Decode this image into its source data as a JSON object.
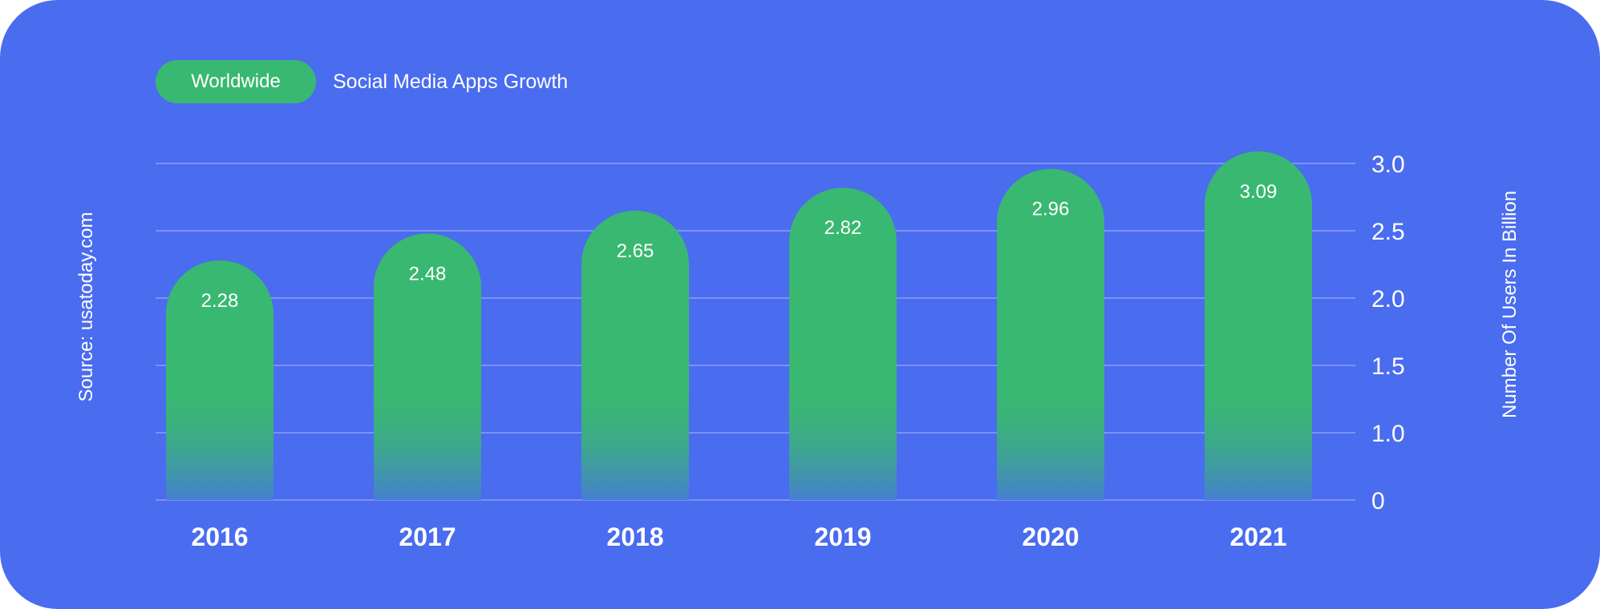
{
  "header": {
    "badge_label": "Worldwide",
    "title": "Social Media Apps Growth"
  },
  "source_note": "Source: usatoday.com",
  "colors": {
    "background": "#4a6cef",
    "bar": "#39b871",
    "grid": "#7c92f4",
    "text": "#ffffff"
  },
  "chart_data": {
    "type": "bar",
    "categories": [
      "2016",
      "2017",
      "2018",
      "2019",
      "2020",
      "2021"
    ],
    "values": [
      2.28,
      2.48,
      2.65,
      2.82,
      2.96,
      3.09
    ],
    "data_labels": [
      "2.28",
      "2.48",
      "2.65",
      "2.82",
      "2.96",
      "3.09"
    ],
    "xlabel": "",
    "ylabel": "Number Of Users In Billion",
    "y_ticks": [
      {
        "value": 0,
        "label": "0"
      },
      {
        "value": 1.0,
        "label": "1.0"
      },
      {
        "value": 1.5,
        "label": "1.5"
      },
      {
        "value": 2.0,
        "label": "2.0"
      },
      {
        "value": 2.5,
        "label": "2.5"
      },
      {
        "value": 3.0,
        "label": "3.0"
      }
    ],
    "y_axis_position": "right",
    "grid": true,
    "legend": "none"
  }
}
